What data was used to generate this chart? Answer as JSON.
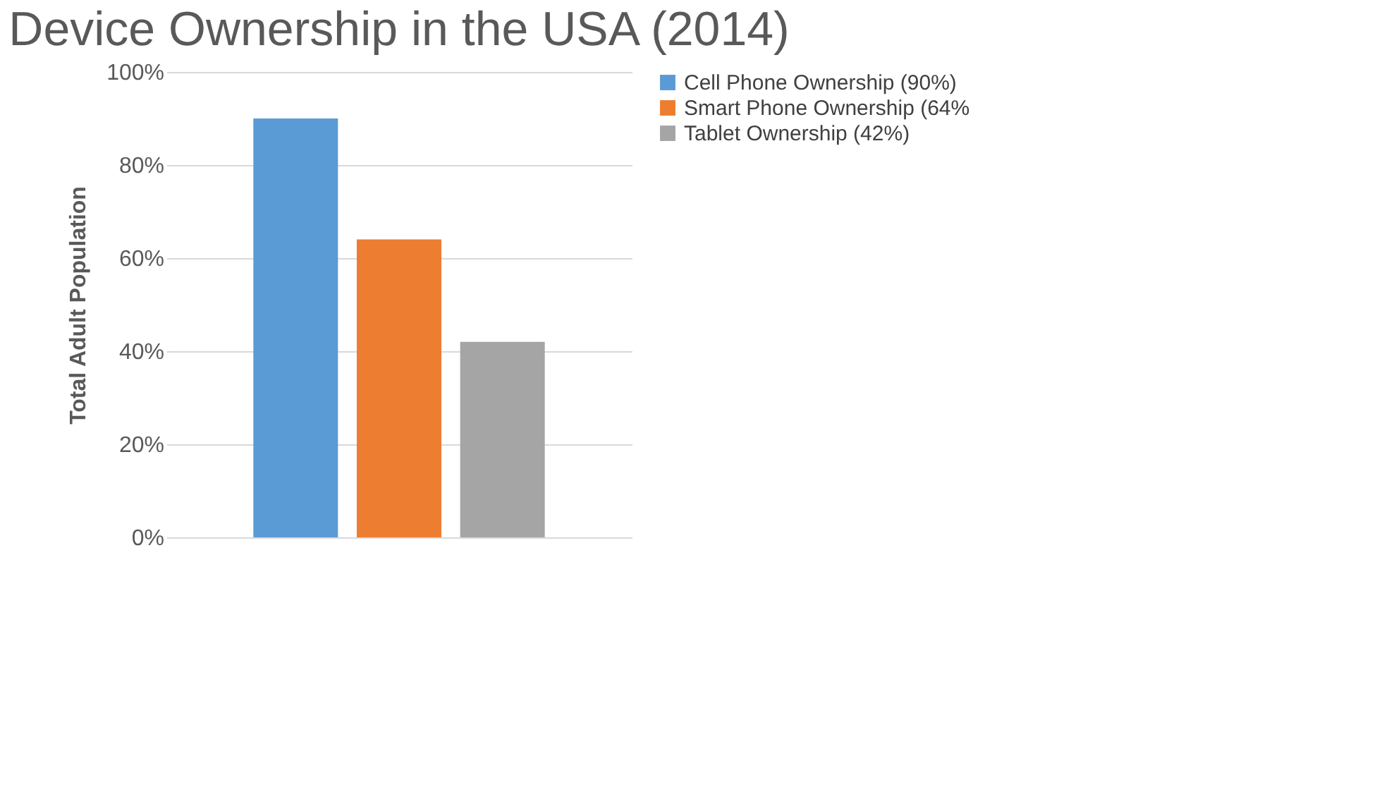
{
  "chart_data": {
    "type": "bar",
    "title": "Device Ownership in the USA (2014)",
    "ylabel": "Total Adult Population",
    "categories": [
      null
    ],
    "series": [
      {
        "name": "Cell Phone Ownership (90%)",
        "color": "#5b9bd5",
        "values": [
          90
        ]
      },
      {
        "name": "Smart Phone Ownership (64%",
        "color": "#ed7d31",
        "values": [
          64
        ]
      },
      {
        "name": "Tablet Ownership (42%)",
        "color": "#a5a5a5",
        "values": [
          42
        ]
      }
    ],
    "ylim": [
      0,
      100
    ],
    "yticks": [
      {
        "value": 0,
        "label": "0%"
      },
      {
        "value": 20,
        "label": "20%"
      },
      {
        "value": 40,
        "label": "40%"
      },
      {
        "value": 60,
        "label": "60%"
      },
      {
        "value": 80,
        "label": "80%"
      },
      {
        "value": 100,
        "label": "100%"
      }
    ],
    "grid": "y",
    "legend": "right"
  }
}
